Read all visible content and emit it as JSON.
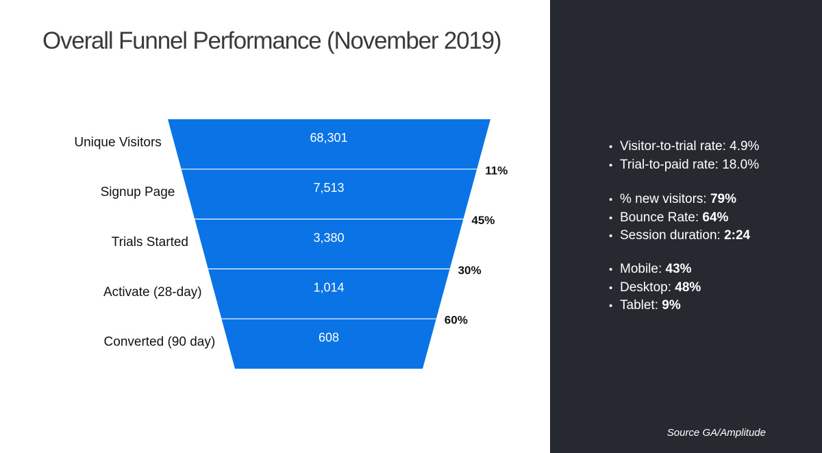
{
  "title": "Overall Funnel Performance (November 2019)",
  "chart_data": {
    "type": "funnel",
    "stages": [
      {
        "label": "Unique Visitors",
        "value": 68301,
        "display": "68,301"
      },
      {
        "label": "Signup Page",
        "value": 7513,
        "display": "7,513"
      },
      {
        "label": "Trials Started",
        "value": 3380,
        "display": "3,380"
      },
      {
        "label": "Activate (28-day)",
        "value": 1014,
        "display": "1,014"
      },
      {
        "label": "Converted (90 day)",
        "value": 608,
        "display": "608"
      }
    ],
    "conversion_rates": [
      "11%",
      "45%",
      "30%",
      "60%"
    ],
    "fill_color": "#0a73e6",
    "divider_color": "#ffffff"
  },
  "stats": {
    "group1": [
      {
        "label": "Visitor-to-trial rate: 4.9%",
        "value": ""
      },
      {
        "label": "Trial-to-paid rate: 18.0%",
        "value": ""
      }
    ],
    "group2": [
      {
        "label": "% new visitors: ",
        "value": "79%"
      },
      {
        "label": "Bounce Rate: ",
        "value": "64%"
      },
      {
        "label": "Session duration: ",
        "value": "2:24"
      }
    ],
    "group3": [
      {
        "label": "Mobile: ",
        "value": "43%"
      },
      {
        "label": "Desktop: ",
        "value": "48%"
      },
      {
        "label": "Tablet: ",
        "value": "9%"
      }
    ],
    "bullet": "•"
  },
  "source": "Source GA/Amplitude",
  "colors": {
    "panel_background": "#262a30",
    "title_text": "#3a3a3a"
  }
}
